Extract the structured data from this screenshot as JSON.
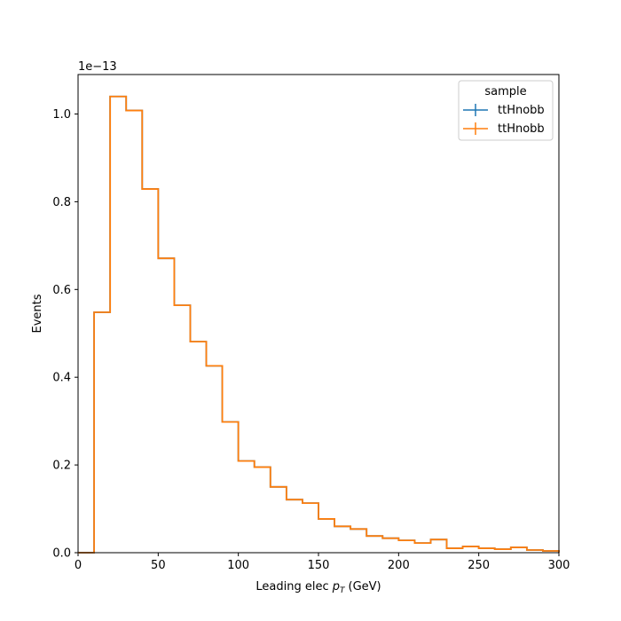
{
  "chart_data": {
    "type": "histogram",
    "title": "",
    "xlabel": "Leading elec",
    "xlabel_var": "p",
    "xlabel_sub": "T",
    "xlabel_unit": "(GeV)",
    "ylabel": "Events",
    "y_scale_label": "1e−13",
    "y_scale": 1e-13,
    "xlim": [
      0,
      300
    ],
    "ylim": [
      0,
      1.09
    ],
    "xticks": [
      0,
      50,
      100,
      150,
      200,
      250,
      300
    ],
    "yticks": [
      0.0,
      0.2,
      0.4,
      0.6,
      0.8,
      1.0
    ],
    "xtick_labels": [
      "0",
      "50",
      "100",
      "150",
      "200",
      "250",
      "300"
    ],
    "ytick_labels": [
      "0.0",
      "0.2",
      "0.4",
      "0.6",
      "0.8",
      "1.0"
    ],
    "bin_edges": [
      0,
      10,
      20,
      30,
      40,
      50,
      60,
      70,
      80,
      90,
      100,
      110,
      120,
      130,
      140,
      150,
      160,
      170,
      180,
      190,
      200,
      210,
      220,
      230,
      240,
      250,
      260,
      270,
      280,
      290,
      300
    ],
    "legend": {
      "title": "sample",
      "location": "upper right",
      "entries": [
        "ttHnobb",
        "ttHnobb"
      ]
    },
    "series": [
      {
        "name": "ttHnobb",
        "color": "#1f77b4",
        "values": [
          0,
          0.548,
          1.04,
          1.008,
          0.829,
          0.671,
          0.564,
          0.481,
          0.426,
          0.298,
          0.209,
          0.195,
          0.15,
          0.121,
          0.113,
          0.077,
          0.06,
          0.054,
          0.038,
          0.033,
          0.028,
          0.022,
          0.03,
          0.01,
          0.014,
          0.01,
          0.008,
          0.012,
          0.006,
          0.004
        ]
      },
      {
        "name": "ttHnobb",
        "color": "#ff7f0e",
        "values": [
          0,
          0.548,
          1.04,
          1.008,
          0.829,
          0.671,
          0.564,
          0.481,
          0.426,
          0.298,
          0.209,
          0.195,
          0.15,
          0.121,
          0.113,
          0.077,
          0.06,
          0.054,
          0.038,
          0.033,
          0.028,
          0.022,
          0.03,
          0.01,
          0.014,
          0.01,
          0.008,
          0.012,
          0.006,
          0.004
        ]
      }
    ]
  }
}
